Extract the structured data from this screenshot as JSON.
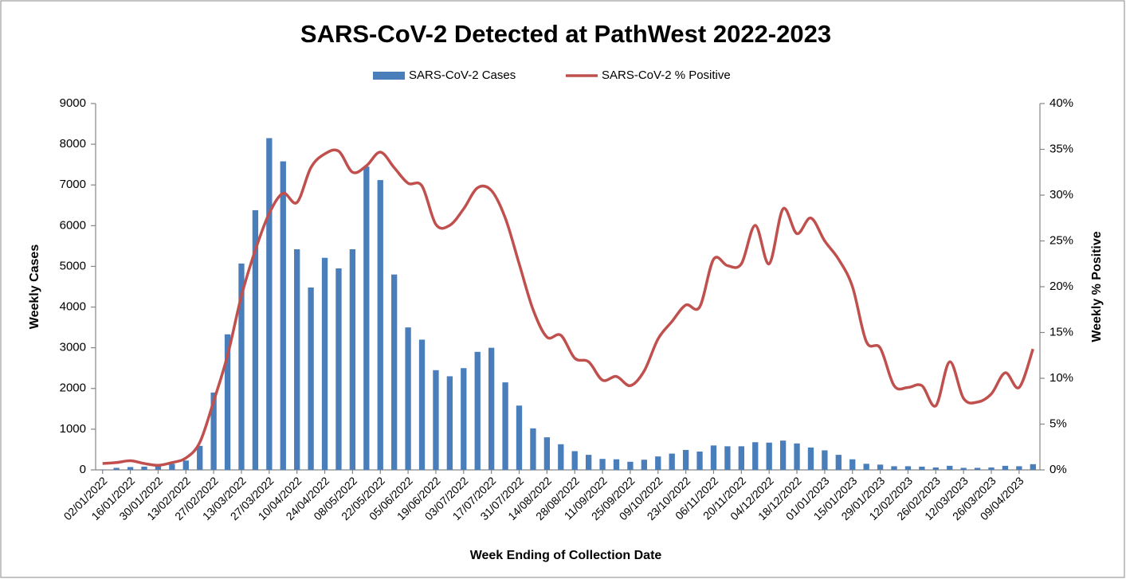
{
  "chart_data": {
    "type": "bar_line",
    "title": "SARS-CoV-2 Detected at PathWest 2022-2023",
    "xlabel": "Week Ending of Collection Date",
    "ylabel": "Weekly Cases",
    "y2label": "Weekly % Positive",
    "categories": [
      "02/01/2022",
      null,
      "16/01/2022",
      null,
      "30/01/2022",
      null,
      "13/02/2022",
      null,
      "27/02/2022",
      null,
      "13/03/2022",
      null,
      "27/03/2022",
      null,
      "10/04/2022",
      null,
      "24/04/2022",
      null,
      "08/05/2022",
      null,
      "22/05/2022",
      null,
      "05/06/2022",
      null,
      "19/06/2022",
      null,
      "03/07/2022",
      null,
      "17/07/2022",
      null,
      "31/07/2022",
      null,
      "14/08/2022",
      null,
      "28/08/2022",
      null,
      "11/09/2022",
      null,
      "25/09/2022",
      null,
      "09/10/2022",
      null,
      "23/10/2022",
      null,
      "06/11/2022",
      null,
      "20/11/2022",
      null,
      "04/12/2022",
      null,
      "18/12/2022",
      null,
      "01/01/2023",
      null,
      "15/01/2023",
      null,
      "29/01/2023",
      null,
      "12/02/2023",
      null,
      "26/02/2023",
      null,
      "12/03/2023",
      null,
      "26/03/2023",
      null,
      "09/04/2023",
      null
    ],
    "series": [
      {
        "name": "SARS-CoV-2 Cases",
        "color": "#4a7ebb",
        "axis": "y",
        "values": [
          10,
          50,
          70,
          80,
          100,
          150,
          230,
          590,
          1900,
          3330,
          5070,
          6380,
          8150,
          7580,
          5420,
          4480,
          5210,
          4950,
          5420,
          7450,
          7120,
          4800,
          3500,
          3200,
          2450,
          2300,
          2500,
          2900,
          3000,
          2150,
          1580,
          1020,
          800,
          630,
          460,
          370,
          270,
          260,
          200,
          250,
          330,
          400,
          490,
          450,
          600,
          580,
          580,
          680,
          670,
          720,
          650,
          550,
          480,
          370,
          260,
          150,
          130,
          90,
          90,
          80,
          60,
          100,
          50,
          50,
          60,
          100,
          90,
          140
        ]
      },
      {
        "name": "SARS-CoV-2 % Positive",
        "color": "#c0504d",
        "axis": "y2",
        "values": [
          0.7,
          0.8,
          1.0,
          0.7,
          0.5,
          0.8,
          1.3,
          3.0,
          7.5,
          12.5,
          19,
          24,
          28,
          30.2,
          29.2,
          33,
          34.5,
          34.8,
          32.5,
          33.2,
          34.7,
          33,
          31.3,
          31,
          26.8,
          26.7,
          28.5,
          30.8,
          30.5,
          27.5,
          22.5,
          17.5,
          14.5,
          14.7,
          12.2,
          11.8,
          9.8,
          10.2,
          9.2,
          10.8,
          14.3,
          16.2,
          18,
          17.8,
          23,
          22.3,
          22.5,
          26.7,
          22.5,
          28.5,
          25.8,
          27.5,
          25,
          23,
          20,
          14,
          13.3,
          9.2,
          9,
          9.2,
          7,
          11.8,
          7.8,
          7.4,
          8.3,
          10.6,
          9,
          13.2
        ]
      }
    ],
    "ylim": [
      0,
      9000
    ],
    "yticks": [
      0,
      1000,
      2000,
      3000,
      4000,
      5000,
      6000,
      7000,
      8000,
      9000
    ],
    "y2lim": [
      0,
      40
    ],
    "y2ticks": [
      {
        "value": 0,
        "label": "0%"
      },
      {
        "value": 5,
        "label": "5%"
      },
      {
        "value": 10,
        "label": "10%"
      },
      {
        "value": 15,
        "label": "15%"
      },
      {
        "value": 20,
        "label": "20%"
      },
      {
        "value": 25,
        "label": "25%"
      },
      {
        "value": 30,
        "label": "30%"
      },
      {
        "value": 35,
        "label": "35%"
      },
      {
        "value": 40,
        "label": "40%"
      }
    ],
    "grid": false,
    "legend": "top"
  }
}
